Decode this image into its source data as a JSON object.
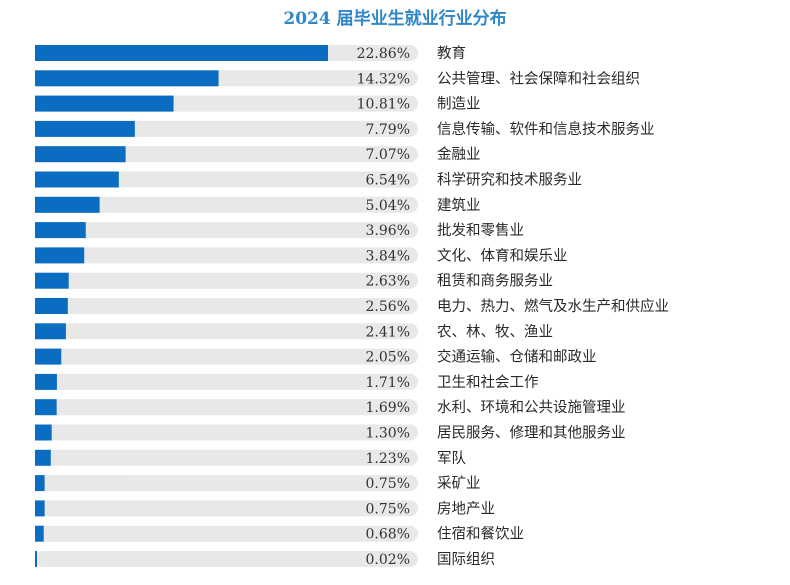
{
  "chart_data": {
    "type": "bar",
    "orientation": "horizontal",
    "title": "2024 届毕业生就业行业分布",
    "xlim": [
      0,
      30
    ],
    "grid": false,
    "legend": "none",
    "colors": {
      "bar": "#0a6dc2",
      "track": "#e8e8e8",
      "title": "#2f86c8"
    },
    "categories": [
      "教育",
      "公共管理、社会保障和社会组织",
      "制造业",
      "信息传输、软件和信息技术服务业",
      "金融业",
      "科学研究和技术服务业",
      "建筑业",
      "批发和零售业",
      "文化、体育和娱乐业",
      "租赁和商务服务业",
      "电力、热力、燃气及水生产和供应业",
      "农、林、牧、渔业",
      "交通运输、仓储和邮政业",
      "卫生和社会工作",
      "水利、环境和公共设施管理业",
      "居民服务、修理和其他服务业",
      "军队",
      "采矿业",
      "房地产业",
      "住宿和餐饮业",
      "国际组织"
    ],
    "values": [
      22.86,
      14.32,
      10.81,
      7.79,
      7.07,
      6.54,
      5.04,
      3.96,
      3.84,
      2.63,
      2.56,
      2.41,
      2.05,
      1.71,
      1.69,
      1.3,
      1.23,
      0.75,
      0.75,
      0.68,
      0.02
    ],
    "labels": [
      "22.86%",
      "14.32%",
      "10.81%",
      "7.79%",
      "7.07%",
      "6.54%",
      "5.04%",
      "3.96%",
      "3.84%",
      "2.63%",
      "2.56%",
      "2.41%",
      "2.05%",
      "1.71%",
      "1.69%",
      "1.30%",
      "1.23%",
      "0.75%",
      "0.75%",
      "0.68%",
      "0.02%"
    ]
  }
}
